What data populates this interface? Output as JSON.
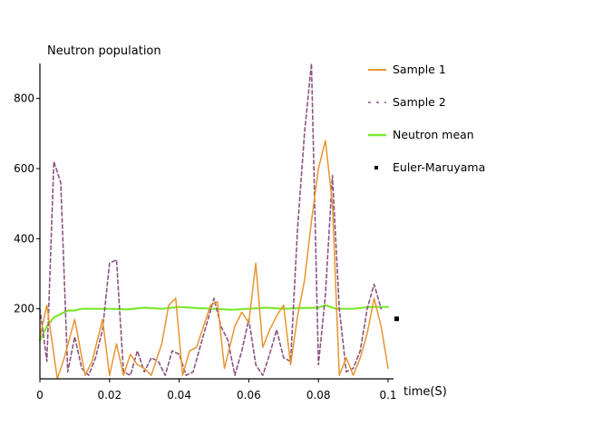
{
  "chart_data": {
    "type": "line",
    "ylabel": "Neutron population",
    "xlabel": "time(S)",
    "xlim": [
      0,
      0.1
    ],
    "ylim": [
      0,
      900
    ],
    "xticks": [
      {
        "value": 0,
        "label": "0"
      },
      {
        "value": 0.02,
        "label": "0.02"
      },
      {
        "value": 0.04,
        "label": "0.04"
      },
      {
        "value": 0.06,
        "label": "0.06"
      },
      {
        "value": 0.08,
        "label": "0.08"
      },
      {
        "value": 0.1,
        "label": "0.1"
      }
    ],
    "yticks": [
      {
        "value": 200,
        "label": "200"
      },
      {
        "value": 400,
        "label": "400"
      },
      {
        "value": 600,
        "label": "600"
      },
      {
        "value": 800,
        "label": "800"
      }
    ],
    "legend_position": "right",
    "series": [
      {
        "name": "Sample  1",
        "style": "solid",
        "color": "#e8952f",
        "x": [
          0,
          0.002,
          0.005,
          0.007,
          0.01,
          0.013,
          0.015,
          0.018,
          0.02,
          0.022,
          0.024,
          0.026,
          0.028,
          0.03,
          0.032,
          0.035,
          0.037,
          0.039,
          0.041,
          0.043,
          0.045,
          0.047,
          0.049,
          0.051,
          0.053,
          0.056,
          0.058,
          0.06,
          0.062,
          0.064,
          0.066,
          0.068,
          0.07,
          0.072,
          0.074,
          0.076,
          0.078,
          0.08,
          0.082,
          0.084,
          0.086,
          0.088,
          0.09,
          0.092,
          0.094,
          0.096,
          0.098,
          0.1
        ],
        "y": [
          120,
          210,
          0,
          60,
          170,
          10,
          50,
          170,
          10,
          100,
          10,
          70,
          40,
          30,
          10,
          100,
          210,
          230,
          10,
          80,
          90,
          150,
          210,
          220,
          30,
          150,
          190,
          160,
          330,
          90,
          140,
          180,
          210,
          40,
          180,
          280,
          450,
          600,
          680,
          500,
          10,
          60,
          10,
          60,
          130,
          230,
          150,
          30
        ]
      },
      {
        "name": "Sample 2",
        "style": "dashed",
        "color": "#8a5580",
        "x": [
          0,
          0.002,
          0.004,
          0.006,
          0.008,
          0.01,
          0.012,
          0.014,
          0.016,
          0.018,
          0.02,
          0.022,
          0.024,
          0.026,
          0.028,
          0.03,
          0.032,
          0.034,
          0.036,
          0.038,
          0.04,
          0.042,
          0.044,
          0.046,
          0.048,
          0.05,
          0.052,
          0.054,
          0.056,
          0.058,
          0.06,
          0.062,
          0.064,
          0.066,
          0.068,
          0.07,
          0.072,
          0.074,
          0.076,
          0.078,
          0.08,
          0.082,
          0.084,
          0.086,
          0.088,
          0.09,
          0.092,
          0.094,
          0.096,
          0.098
        ],
        "y": [
          200,
          50,
          620,
          560,
          20,
          120,
          30,
          10,
          60,
          140,
          330,
          340,
          20,
          10,
          80,
          20,
          60,
          50,
          10,
          80,
          70,
          10,
          20,
          90,
          160,
          230,
          150,
          110,
          10,
          80,
          170,
          40,
          10,
          70,
          140,
          60,
          50,
          430,
          700,
          900,
          40,
          240,
          580,
          200,
          20,
          30,
          80,
          200,
          270,
          200
        ]
      },
      {
        "name": "Neutron mean",
        "style": "solid",
        "color": "#7ee832",
        "x": [
          0,
          0.002,
          0.004,
          0.006,
          0.008,
          0.01,
          0.012,
          0.015,
          0.02,
          0.025,
          0.03,
          0.035,
          0.04,
          0.045,
          0.05,
          0.055,
          0.06,
          0.065,
          0.07,
          0.075,
          0.08,
          0.082,
          0.085,
          0.09,
          0.095,
          0.1
        ],
        "y": [
          110,
          150,
          175,
          185,
          195,
          195,
          200,
          200,
          200,
          198,
          203,
          200,
          205,
          202,
          200,
          197,
          200,
          203,
          200,
          202,
          203,
          210,
          200,
          200,
          205,
          205
        ]
      },
      {
        "name": "Euler-Maruyama",
        "style": "points",
        "color": "#000000",
        "x": [
          0.1
        ],
        "y": [
          170
        ]
      }
    ]
  }
}
